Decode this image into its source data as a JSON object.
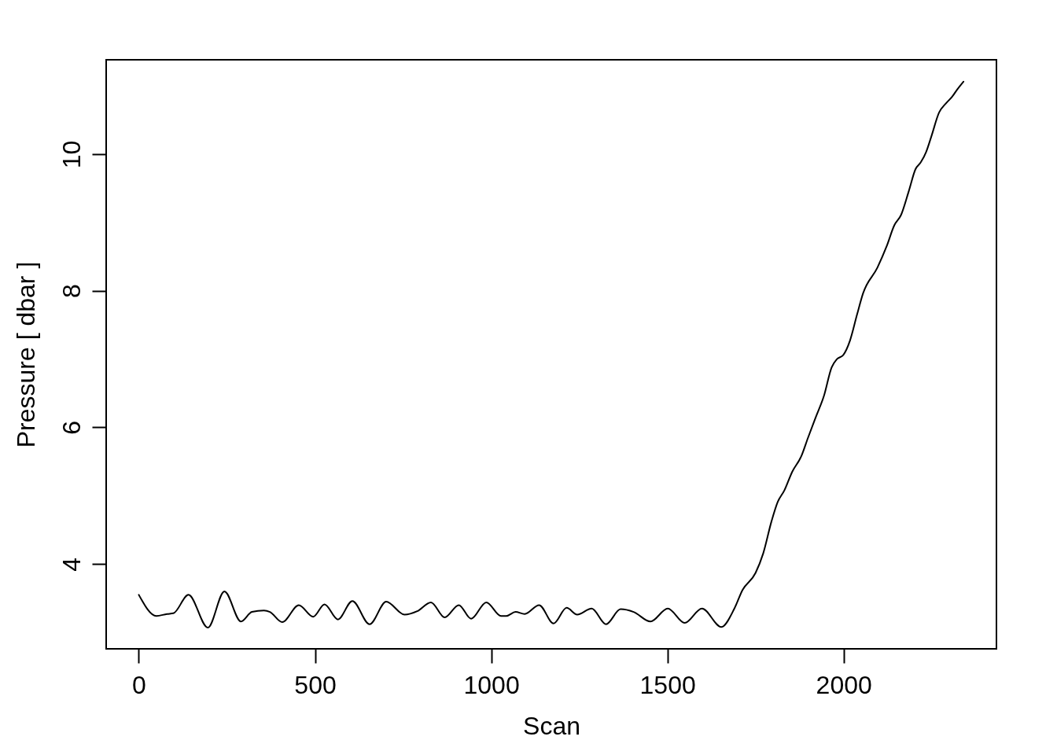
{
  "chart_data": {
    "type": "line",
    "xlabel": "Scan",
    "ylabel": "Pressure [ dbar ]",
    "color": "#000000",
    "xlim": [
      -92.6,
      2433.6
    ],
    "ylim": [
      2.76,
      11.38
    ],
    "xticks": [
      0,
      500,
      1000,
      1500,
      2000
    ],
    "yticks": [
      4,
      6,
      8,
      10
    ],
    "x": [
      0,
      50,
      80,
      98,
      141,
      196,
      243,
      290,
      321,
      355,
      372,
      407,
      454,
      495,
      527,
      565,
      606,
      655,
      702,
      754,
      790,
      829,
      868,
      908,
      943,
      986,
      1028,
      1043,
      1069,
      1095,
      1136,
      1177,
      1214,
      1244,
      1285,
      1326,
      1367,
      1404,
      1452,
      1501,
      1549,
      1598,
      1653,
      1690,
      1713,
      1750,
      1772,
      1795,
      1813,
      1832,
      1854,
      1880,
      1899,
      1921,
      1944,
      1966,
      1981,
      1999,
      2018,
      2038,
      2055,
      2096,
      2122,
      2144,
      2163,
      2185,
      2204,
      2219,
      2234,
      2249,
      2271,
      2290,
      2308,
      2323,
      2340
    ],
    "values": [
      3.55,
      3.24,
      3.27,
      3.28,
      3.55,
      3.07,
      3.6,
      3.16,
      3.3,
      3.32,
      3.3,
      3.15,
      3.4,
      3.23,
      3.41,
      3.19,
      3.46,
      3.12,
      3.45,
      3.26,
      3.31,
      3.44,
      3.22,
      3.4,
      3.2,
      3.44,
      3.24,
      3.24,
      3.3,
      3.27,
      3.4,
      3.13,
      3.36,
      3.26,
      3.35,
      3.12,
      3.34,
      3.3,
      3.16,
      3.35,
      3.14,
      3.35,
      3.08,
      3.35,
      3.62,
      3.87,
      4.16,
      4.62,
      4.91,
      5.08,
      5.35,
      5.58,
      5.85,
      6.15,
      6.46,
      6.88,
      7.0,
      7.06,
      7.27,
      7.65,
      7.96,
      8.34,
      8.65,
      8.96,
      9.11,
      9.46,
      9.78,
      9.88,
      10.03,
      10.26,
      10.61,
      10.74,
      10.84,
      10.95,
      11.06
    ]
  }
}
